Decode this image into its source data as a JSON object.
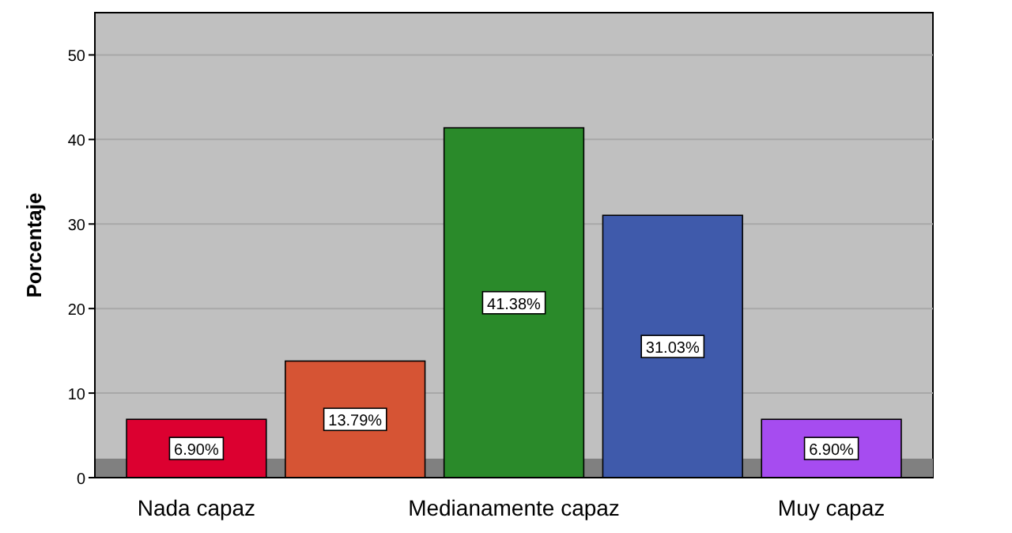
{
  "chart_data": {
    "type": "bar",
    "ylabel": "Porcentaje",
    "categories": [
      "Nada capaz",
      null,
      "Medianamente capaz",
      null,
      "Muy capaz"
    ],
    "values": [
      6.9,
      13.79,
      41.38,
      31.03,
      6.9
    ],
    "colors": [
      "#dc0030",
      "#d65434",
      "#2a8a2a",
      "#3f5aab",
      "#a64cf0"
    ],
    "value_labels": [
      "6.90%",
      "13.79%",
      "41.38%",
      "31.03%",
      "6.90%"
    ],
    "ylim": [
      0,
      55
    ],
    "yticks": [
      0,
      10,
      20,
      30,
      40,
      50
    ],
    "grid": "y"
  }
}
